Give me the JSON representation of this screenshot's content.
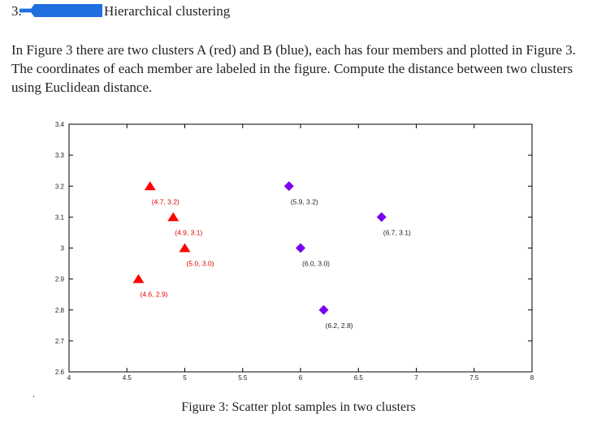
{
  "heading": {
    "number": "3.",
    "title": "Hierarchical clustering"
  },
  "question": "In Figure 3 there are two clusters A (red) and B (blue), each has four members and plotted in Figure 3. The coordinates of each member are labeled in the figure. Compute the distance between two clusters using Euclidean distance.",
  "caption": "Figure 3: Scatter plot samples in two clusters",
  "chart_data": {
    "type": "scatter",
    "xlim": [
      4,
      8
    ],
    "ylim": [
      2.6,
      3.4
    ],
    "xticks": [
      "4",
      "4.5",
      "5",
      "5.5",
      "6",
      "6.5",
      "7",
      "7.5",
      "8"
    ],
    "yticks": [
      "2.6",
      "2.7",
      "2.8",
      "2.9",
      "3",
      "3.1",
      "3.2",
      "3.3",
      "3.4"
    ],
    "grid": false,
    "series": [
      {
        "marker": "triangle",
        "color": "#ff0000",
        "points": [
          {
            "x": 4.7,
            "y": 3.2,
            "label": "(4.7, 3.2)"
          },
          {
            "x": 4.9,
            "y": 3.1,
            "label": "(4.9, 3.1)"
          },
          {
            "x": 5.0,
            "y": 3.0,
            "label": "(5.0, 3.0)"
          },
          {
            "x": 4.6,
            "y": 2.9,
            "label": "(4.6, 2.9)"
          }
        ]
      },
      {
        "marker": "diamond",
        "color": "#7b00f0",
        "points": [
          {
            "x": 5.9,
            "y": 3.2,
            "label": "(5.9, 3.2)"
          },
          {
            "x": 6.7,
            "y": 3.1,
            "label": "(6.7, 3.1)"
          },
          {
            "x": 6.0,
            "y": 3.0,
            "label": "(6.0, 3.0)"
          },
          {
            "x": 6.2,
            "y": 2.8,
            "label": "(6.2, 2.8)"
          }
        ]
      }
    ]
  }
}
